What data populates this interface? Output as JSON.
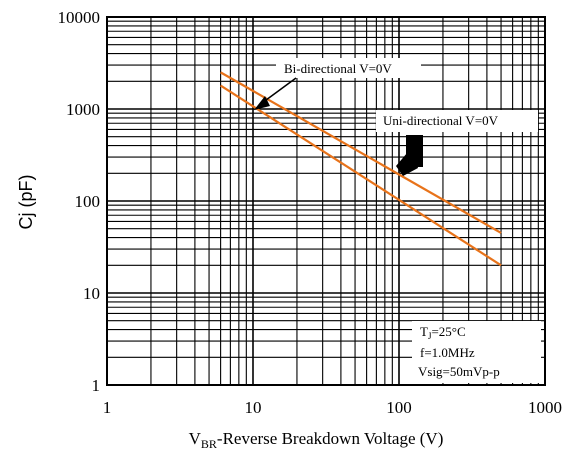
{
  "chart_data": {
    "type": "line",
    "title": "",
    "xlabel_main": "V",
    "xlabel_sub": "BR",
    "xlabel_rest": "-Reverse Breakdown Voltage (V)",
    "ylabel": "Cj (pF)",
    "xscale": "log",
    "yscale": "log",
    "xlim": [
      1,
      1000
    ],
    "ylim": [
      1,
      10000
    ],
    "grid": true,
    "x_tick_labels": [
      "1",
      "10",
      "100",
      "1000"
    ],
    "y_tick_labels": [
      "1",
      "10",
      "100",
      "1000",
      "10000"
    ],
    "series": [
      {
        "name": "Bi-directional V=0V",
        "x": [
          6,
          500
        ],
        "y": [
          2500,
          45
        ],
        "color": "#e8731a"
      },
      {
        "name": "Uni-directional V=0V",
        "x": [
          6,
          500
        ],
        "y": [
          1800,
          20
        ],
        "color": "#e8731a"
      }
    ],
    "annotations": {
      "bi_label": "Bi-directional V=0V",
      "uni_label": "Uni-directional V=0V"
    },
    "conditions": {
      "tj_main": "T",
      "tj_sub": "J",
      "tj_rest": "=25°C",
      "freq": "f=1.0MHz",
      "vsig": "Vsig=50mVp-p"
    }
  }
}
